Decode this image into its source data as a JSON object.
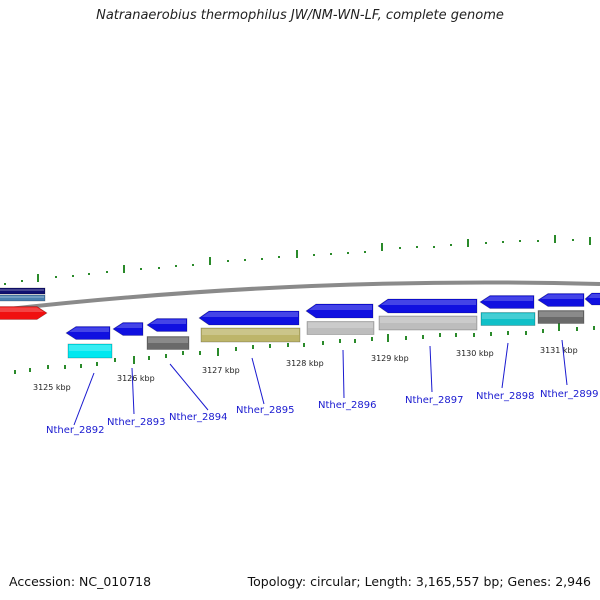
{
  "title": "Natranaerobius thermophilus JW/NM-WN-LF, complete genome",
  "footer": {
    "accession": "Accession: NC_010718",
    "topology": "Topology: circular; Length: 3,165,557 bp; Genes: 2,946"
  },
  "colors": {
    "backbone": "#8a8a8a",
    "tick": "#2a8a2a",
    "label": "#1a1ad0",
    "gene_blue": "#1010e0",
    "gene_cyan": "#00e8f0",
    "gene_dark_gray": "#6a6a6a",
    "gene_olive": "#bdb56a",
    "gene_light_gray": "#bdbdbd",
    "gene_teal": "#10c0c8",
    "gene_red": "#f01010",
    "gene_navy": "#101070",
    "gene_steelblue": "#4a80b0"
  },
  "scale_labels": [
    "3125 kbp",
    "3126 kbp",
    "3127 kbp",
    "3128 kbp",
    "3129 kbp",
    "3130 kbp",
    "3131 kbp"
  ],
  "gene_labels": [
    "Nther_2892",
    "Nther_2893",
    "Nther_2894",
    "Nther_2895",
    "Nther_2896",
    "Nther_2897",
    "Nther_2898",
    "Nther_2899"
  ]
}
